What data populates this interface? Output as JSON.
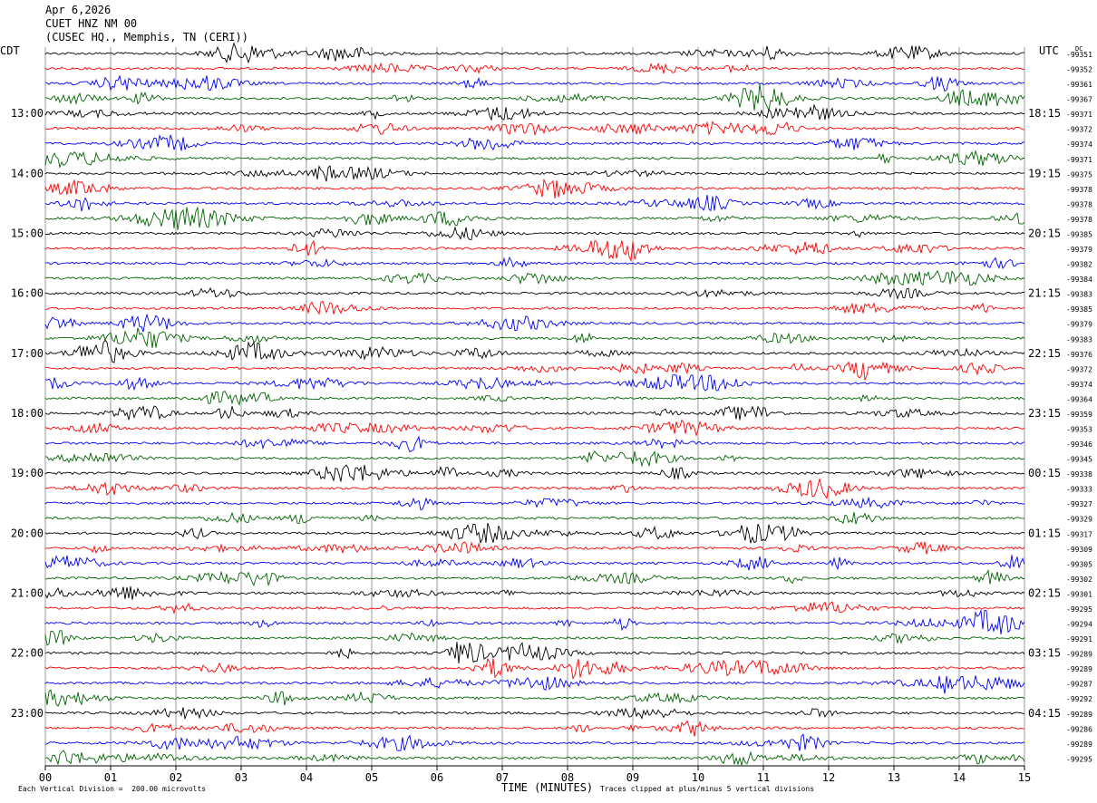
{
  "header": {
    "date": "Apr 6,2026",
    "station": "CUET HNZ NM 00",
    "location": "(CUSEC HQ., Memphis, TN (CERI))"
  },
  "chart_data": {
    "type": "line",
    "title": "Apr 6,2026",
    "xlabel": "TIME (MINUTES)",
    "left_timezone": "CDT",
    "right_timezone": "UTC",
    "dc_label": "DC",
    "x_ticks": [
      "00",
      "01",
      "02",
      "03",
      "04",
      "05",
      "06",
      "07",
      "08",
      "09",
      "10",
      "11",
      "12",
      "13",
      "14",
      "15"
    ],
    "xlim": [
      0,
      15
    ],
    "left_hour_labels": [
      "13:00",
      "14:00",
      "15:00",
      "16:00",
      "17:00",
      "18:00",
      "19:00",
      "20:00",
      "21:00",
      "22:00",
      "23:00"
    ],
    "right_hour_labels": [
      "18:15",
      "19:15",
      "20:15",
      "21:15",
      "22:15",
      "23:15",
      "00:15",
      "01:15",
      "02:15",
      "03:15",
      "04:15"
    ],
    "trace_colors": [
      "#000000",
      "#ff0000",
      "#0000ff",
      "#006400"
    ],
    "dc_offsets": [
      "-99351",
      "-99352",
      "-99361",
      "-99367",
      "-99371",
      "-99372",
      "-99374",
      "-99371",
      "-99375",
      "-99378",
      "-99378",
      "-99378",
      "-99385",
      "-99379",
      "-99382",
      "-99384",
      "-99383",
      "-99385",
      "-99379",
      "-99383",
      "-99376",
      "-99372",
      "-99374",
      "-99364",
      "-99359",
      "-99353",
      "-99346",
      "-99345",
      "-99338",
      "-99333",
      "-99327",
      "-99329",
      "-99317",
      "-99309",
      "-99305",
      "-99302",
      "-99301",
      "-99295",
      "-99294",
      "-99291",
      "-99289",
      "-99289",
      "-99287",
      "-99292",
      "-99289",
      "-99286",
      "-99289",
      "-99295"
    ],
    "scale_note": "Each Vertical Division =  200.00 microvolts",
    "clip_note": "Traces clipped at plus/minus 5 vertical divisions"
  }
}
